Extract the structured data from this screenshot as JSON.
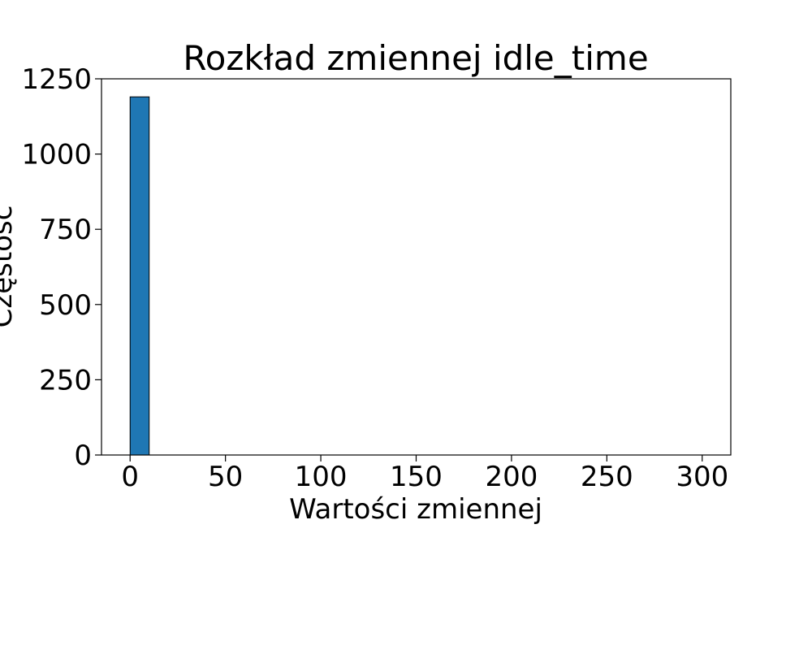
{
  "chart_data": {
    "type": "bar",
    "title": "Rozkład zmiennej idle_time",
    "xlabel": "Wartości zmiennej",
    "ylabel": "Częstość",
    "xlim": [
      -15,
      315
    ],
    "ylim": [
      0,
      1250
    ],
    "x_ticks": [
      0,
      50,
      100,
      150,
      200,
      250,
      300
    ],
    "y_ticks": [
      0,
      250,
      500,
      750,
      1000,
      1250
    ],
    "bins": [
      {
        "x0": 0,
        "x1": 10,
        "count": 1190
      }
    ],
    "bar_color": "#1f77b4",
    "edge_color": "#000000",
    "grid": false
  }
}
